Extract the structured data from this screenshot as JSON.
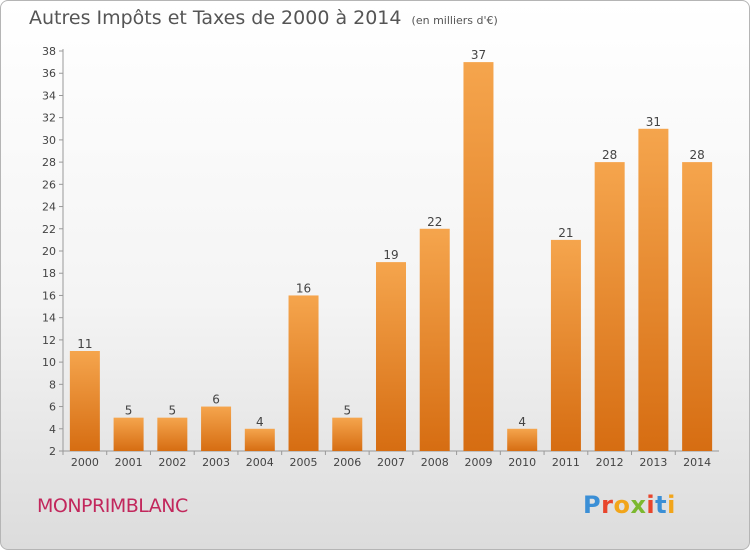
{
  "header": {
    "title": "Autres Impôts et Taxes de 2000 à 2014",
    "unit": "(en milliers d'€)"
  },
  "footer": {
    "commune": "MONPRIMBLANC"
  },
  "logo": {
    "letters": [
      "P",
      "r",
      "o",
      "x",
      "i",
      "t",
      "i"
    ],
    "colors": [
      "#3b8fd6",
      "#e8452c",
      "#f2a51a",
      "#7cb82f",
      "#e8452c",
      "#3b8fd6",
      "#f2a51a"
    ]
  },
  "colors": {
    "bar_top": "#f5a54d",
    "bar_bottom": "#d66d12",
    "text": "#555555",
    "commune": "#c2275c"
  },
  "chart_data": {
    "type": "bar",
    "title": "Autres Impôts et Taxes de 2000 à 2014",
    "subtitle": "(en milliers d'€)",
    "categories": [
      "2000",
      "2001",
      "2002",
      "2003",
      "2004",
      "2005",
      "2006",
      "2007",
      "2008",
      "2009",
      "2010",
      "2011",
      "2012",
      "2013",
      "2014"
    ],
    "values": [
      11,
      5,
      5,
      6,
      4,
      16,
      5,
      19,
      22,
      37,
      4,
      21,
      28,
      31,
      28
    ],
    "ylim": [
      2,
      38
    ],
    "yticks": [
      2,
      4,
      6,
      8,
      10,
      12,
      14,
      16,
      18,
      20,
      22,
      24,
      26,
      28,
      30,
      32,
      34,
      36,
      38
    ],
    "grid": false,
    "legend": "none"
  }
}
